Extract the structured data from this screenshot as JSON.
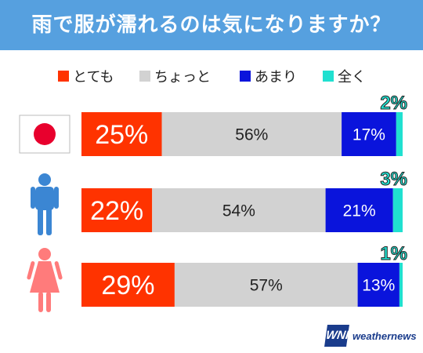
{
  "title": "雨で服が濡れるのは気になりますか？",
  "colors": {
    "title_bg": "#56a0df",
    "series": [
      "#ff3300",
      "#d2d2d2",
      "#0a14dc",
      "#20e0d0"
    ],
    "icon_male": "#3b86d3",
    "icon_female": "#ff7b7b",
    "flag_red": "#e8002d"
  },
  "chart_data": {
    "type": "bar",
    "orientation": "horizontal",
    "stacked": true,
    "categories": [
      "japan-flag-icon",
      "male-icon",
      "female-icon"
    ],
    "series": [
      {
        "name": "とても",
        "values": [
          25,
          22,
          29
        ],
        "labels": [
          "25%",
          "22%",
          "29%"
        ]
      },
      {
        "name": "ちょっと",
        "values": [
          56,
          54,
          57
        ],
        "labels": [
          "56%",
          "54%",
          "57%"
        ]
      },
      {
        "name": "あまり",
        "values": [
          17,
          21,
          13
        ],
        "labels": [
          "17%",
          "21%",
          "13%"
        ]
      },
      {
        "name": "全く",
        "values": [
          2,
          3,
          1
        ],
        "labels": [
          "2%",
          "3%",
          "1%"
        ]
      }
    ],
    "legend_position": "top",
    "grid": false,
    "xlim": [
      0,
      100
    ]
  },
  "logo": {
    "mark": "WNI",
    "text": "weathernews"
  }
}
